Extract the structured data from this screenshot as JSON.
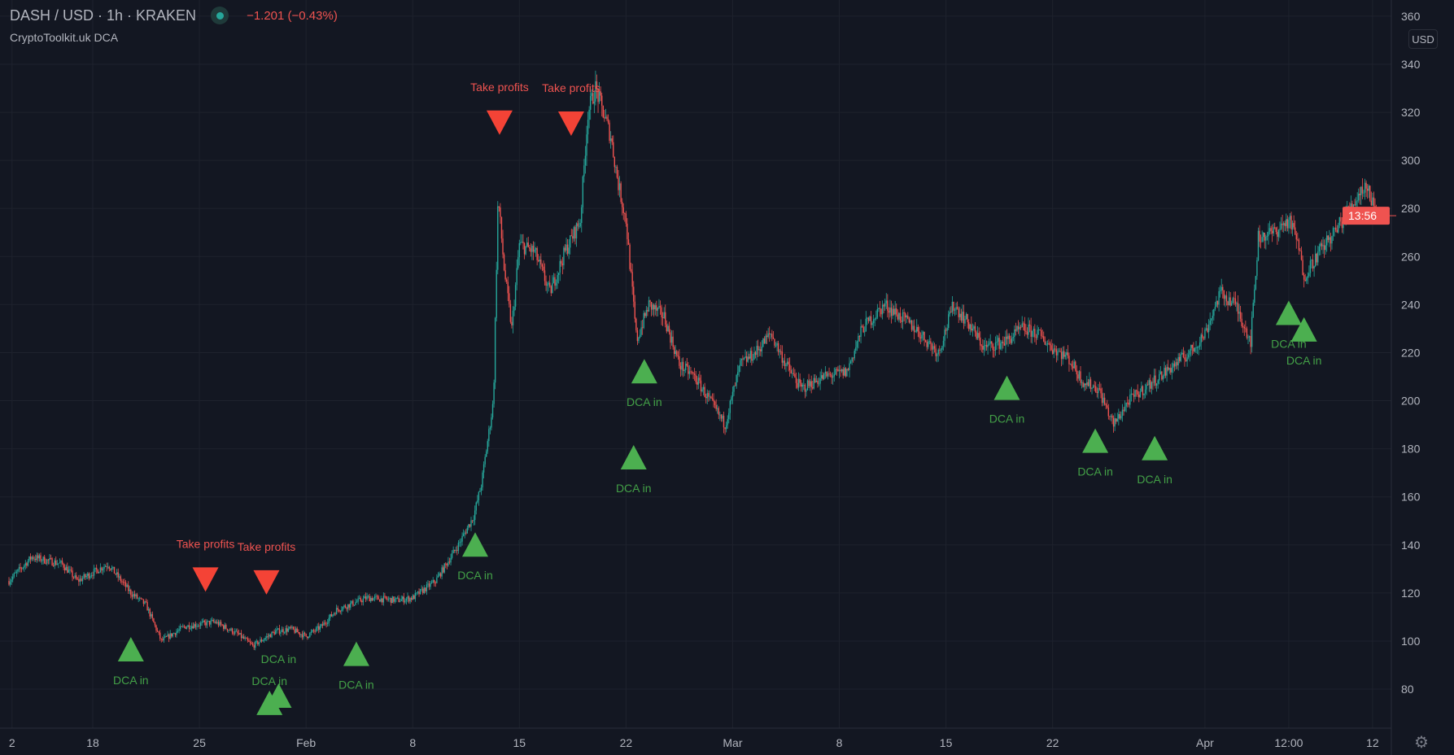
{
  "header": {
    "symbol": "DASH / USD · 1h · KRAKEN",
    "change": "−1.201 (−0.43%)",
    "indicator": "CryptoToolkit.uk DCA",
    "market_status": "open"
  },
  "axis": {
    "currency_label": "USD",
    "current_time_label": "13:56",
    "settings_icon": "gear-icon"
  },
  "colors": {
    "up": "#26a69a",
    "down": "#ef5350",
    "buy": "#4caf50",
    "sell": "#f44336",
    "background": "#131722"
  },
  "chart_data": {
    "type": "candlestick",
    "timeframe": "1h",
    "ylim": [
      65,
      365
    ],
    "y_ticks": [
      80,
      100,
      120,
      140,
      160,
      180,
      200,
      220,
      240,
      260,
      280,
      300,
      320,
      340,
      360
    ],
    "x_ticks": [
      {
        "label": "2",
        "day": 11.7
      },
      {
        "label": "18",
        "day": 17
      },
      {
        "label": "25",
        "day": 24
      },
      {
        "label": "Feb",
        "day": 31
      },
      {
        "label": "8",
        "day": 38
      },
      {
        "label": "15",
        "day": 45
      },
      {
        "label": "22",
        "day": 52
      },
      {
        "label": "Mar",
        "day": 59
      },
      {
        "label": "8",
        "day": 66
      },
      {
        "label": "15",
        "day": 73
      },
      {
        "label": "22",
        "day": 80
      },
      {
        "label": "Apr",
        "day": 90
      },
      {
        "label": "12:00",
        "day": 95.5
      },
      {
        "label": "12",
        "day": 101
      }
    ],
    "price_path": [
      [
        11.5,
        125
      ],
      [
        13,
        135
      ],
      [
        15,
        132
      ],
      [
        16,
        125
      ],
      [
        18,
        132
      ],
      [
        19.5,
        120
      ],
      [
        20.5,
        115
      ],
      [
        21.5,
        100
      ],
      [
        23,
        106
      ],
      [
        25,
        108
      ],
      [
        26.5,
        103
      ],
      [
        27.5,
        98
      ],
      [
        29,
        104
      ],
      [
        30,
        105
      ],
      [
        31,
        102
      ],
      [
        32,
        106
      ],
      [
        33,
        113
      ],
      [
        35,
        118
      ],
      [
        37,
        117
      ],
      [
        38,
        118
      ],
      [
        39.5,
        125
      ],
      [
        41,
        140
      ],
      [
        42,
        152
      ],
      [
        42.5,
        165
      ],
      [
        43.3,
        200
      ],
      [
        43.6,
        285
      ],
      [
        44,
        255
      ],
      [
        44.5,
        230
      ],
      [
        45,
        265
      ],
      [
        46,
        262
      ],
      [
        47,
        245
      ],
      [
        48,
        262
      ],
      [
        49,
        275
      ],
      [
        49.5,
        320
      ],
      [
        50,
        330
      ],
      [
        51,
        310
      ],
      [
        51.5,
        290
      ],
      [
        52,
        275
      ],
      [
        52.7,
        225
      ],
      [
        53.5,
        240
      ],
      [
        54.5,
        235
      ],
      [
        55.5,
        215
      ],
      [
        56.5,
        210
      ],
      [
        57.5,
        200
      ],
      [
        58.5,
        190
      ],
      [
        59.5,
        215
      ],
      [
        60.5,
        220
      ],
      [
        61.5,
        228
      ],
      [
        62.5,
        215
      ],
      [
        63.5,
        205
      ],
      [
        65,
        210
      ],
      [
        66.5,
        212
      ],
      [
        67.5,
        230
      ],
      [
        69,
        240
      ],
      [
        71,
        230
      ],
      [
        72.5,
        220
      ],
      [
        73.5,
        240
      ],
      [
        74.5,
        232
      ],
      [
        75.5,
        222
      ],
      [
        77,
        225
      ],
      [
        78,
        230
      ],
      [
        79,
        228
      ],
      [
        80,
        222
      ],
      [
        81,
        218
      ],
      [
        82,
        208
      ],
      [
        83,
        205
      ],
      [
        84,
        190
      ],
      [
        85,
        200
      ],
      [
        86,
        205
      ],
      [
        87,
        210
      ],
      [
        88,
        215
      ],
      [
        89,
        220
      ],
      [
        90,
        228
      ],
      [
        91,
        245
      ],
      [
        92,
        240
      ],
      [
        93,
        225
      ],
      [
        93.5,
        268
      ],
      [
        94.5,
        270
      ],
      [
        95.5,
        275
      ],
      [
        96,
        268
      ],
      [
        96.5,
        252
      ],
      [
        97.5,
        262
      ],
      [
        98.5,
        270
      ],
      [
        99.5,
        280
      ],
      [
        100.5,
        290
      ],
      [
        101,
        283
      ],
      [
        101.4,
        277
      ]
    ],
    "signals": [
      {
        "type": "buy",
        "label": "DCA in",
        "day": 19.5,
        "price": 96.6
      },
      {
        "type": "buy",
        "label": "DCA in",
        "day": 28.6,
        "price": 74.3
      },
      {
        "type": "buy",
        "label": "DCA in",
        "day": 29.2,
        "price": 77.3
      },
      {
        "type": "buy",
        "label": "DCA in",
        "day": 34.3,
        "price": 94.7
      },
      {
        "type": "buy",
        "label": "DCA in",
        "day": 42.1,
        "price": 140.2
      },
      {
        "type": "buy",
        "label": "DCA in",
        "day": 52.5,
        "price": 176.5
      },
      {
        "type": "buy",
        "label": "DCA in",
        "day": 53.2,
        "price": 212.3
      },
      {
        "type": "buy",
        "label": "DCA in",
        "day": 77,
        "price": 205.4
      },
      {
        "type": "buy",
        "label": "DCA in",
        "day": 82.8,
        "price": 183.4
      },
      {
        "type": "buy",
        "label": "DCA in",
        "day": 86.7,
        "price": 180.3
      },
      {
        "type": "buy",
        "label": "DCA in",
        "day": 95.5,
        "price": 236.6
      },
      {
        "type": "buy",
        "label": "DCA in",
        "day": 96.5,
        "price": 229.7
      },
      {
        "type": "sell",
        "label": "Take profits",
        "day": 24.4,
        "price": 125.6
      },
      {
        "type": "sell",
        "label": "Take profits",
        "day": 28.4,
        "price": 124.4
      },
      {
        "type": "sell",
        "label": "Take profits",
        "day": 43.7,
        "price": 315.7
      },
      {
        "type": "sell",
        "label": "Take profits",
        "day": 48.4,
        "price": 315.3
      }
    ],
    "last_price": 277
  }
}
